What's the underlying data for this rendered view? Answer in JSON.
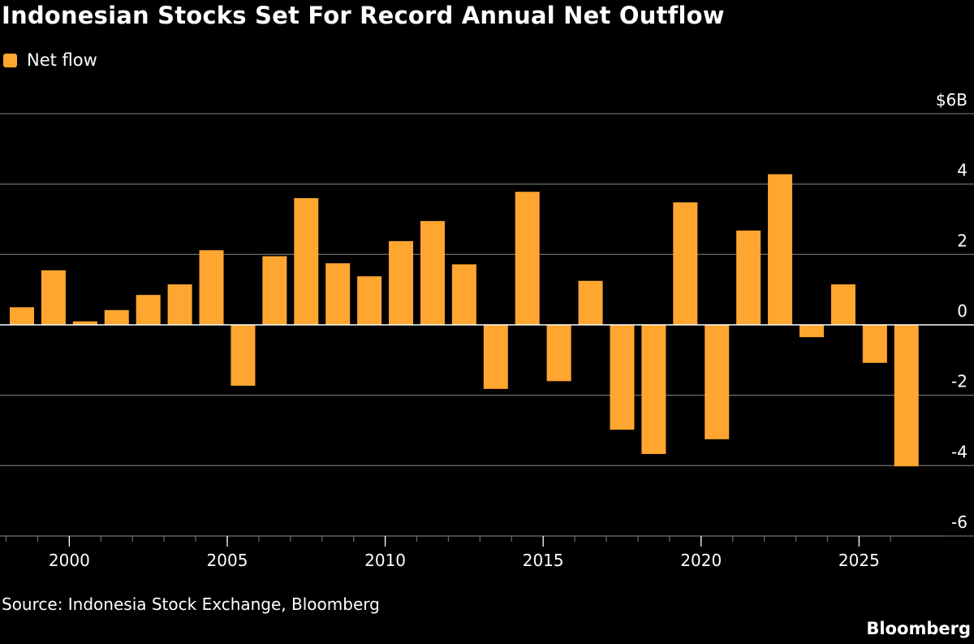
{
  "chart_data": {
    "type": "bar",
    "title": "Indonesian Stocks Set For Record Annual Net Outflow",
    "legend": [
      {
        "name": "Net flow",
        "color": "#ffa630"
      }
    ],
    "series": [
      {
        "name": "Net flow",
        "x": [
          1998,
          1999,
          2000,
          2001,
          2002,
          2003,
          2004,
          2005,
          2006,
          2007,
          2008,
          2009,
          2010,
          2011,
          2012,
          2013,
          2014,
          2015,
          2016,
          2017,
          2018,
          2019,
          2020,
          2021,
          2022,
          2023,
          2024,
          2025,
          2026
        ],
        "values": [
          0.5,
          1.55,
          0.1,
          0.42,
          0.85,
          1.15,
          2.12,
          -1.73,
          1.95,
          3.6,
          1.75,
          1.38,
          2.38,
          2.95,
          1.72,
          -1.82,
          3.78,
          -1.6,
          1.25,
          -2.98,
          -3.67,
          3.48,
          -3.25,
          2.68,
          4.28,
          -0.35,
          1.15,
          -1.08,
          -4.02
        ]
      }
    ],
    "y_ticks": [
      {
        "value": 6,
        "label": "$6B"
      },
      {
        "value": 4,
        "label": "4"
      },
      {
        "value": 2,
        "label": "2"
      },
      {
        "value": 0,
        "label": "0"
      },
      {
        "value": -2,
        "label": "-2"
      },
      {
        "value": -4,
        "label": "-4"
      },
      {
        "value": -6,
        "label": "-6"
      }
    ],
    "x_tick_labels": [
      {
        "year": 2000,
        "label": "2000"
      },
      {
        "year": 2005,
        "label": "2005"
      },
      {
        "year": 2010,
        "label": "2010"
      },
      {
        "year": 2015,
        "label": "2015"
      },
      {
        "year": 2020,
        "label": "2020"
      },
      {
        "year": 2025,
        "label": "2025"
      }
    ],
    "x_minor_ticks": [
      1998,
      1999,
      2000,
      2001,
      2002,
      2003,
      2004,
      2005,
      2006,
      2007,
      2008,
      2009,
      2010,
      2011,
      2012,
      2013,
      2014,
      2015,
      2016,
      2017,
      2018,
      2019,
      2020,
      2021,
      2022,
      2023,
      2024,
      2025,
      2026
    ],
    "ylim": [
      -6,
      6
    ],
    "grid": true,
    "colors": {
      "background": "#000000",
      "bar": "#ffa630",
      "gridline": "#666666",
      "zero_line": "#ffffff",
      "text": "#ffffff"
    }
  },
  "footer": {
    "source": "Source: Indonesia Stock Exchange, Bloomberg",
    "brand": "Bloomberg"
  }
}
